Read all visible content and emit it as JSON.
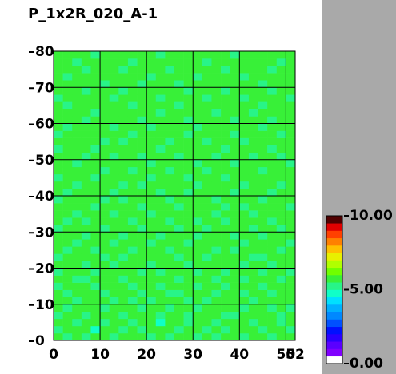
{
  "chart_data": {
    "type": "heatmap",
    "title": "P_1x2R_020_A-1",
    "xlim": [
      0,
      52
    ],
    "ylim": [
      0,
      80
    ],
    "xticks": [
      0,
      10,
      20,
      30,
      40,
      50,
      52
    ],
    "yticks": [
      0,
      10,
      20,
      30,
      40,
      50,
      60,
      70,
      80
    ],
    "zlim": [
      0,
      10
    ],
    "zticks": [
      {
        "value": 0,
        "label": "0.00"
      },
      {
        "value": 5,
        "label": "5.00"
      },
      {
        "value": 10,
        "label": "10.00"
      }
    ],
    "colors": [
      "#ffffff",
      "#8000ff",
      "#5a00ff",
      "#2a00ff",
      "#0010ff",
      "#0050ff",
      "#0088ff",
      "#00b0ff",
      "#00e0ff",
      "#10ffc8",
      "#28f488",
      "#38f038",
      "#70ff00",
      "#b0ff00",
      "#e8f000",
      "#ffc000",
      "#ff8000",
      "#ff4000",
      "#e00000",
      "#500000"
    ],
    "grid": true,
    "z": [
      [
        5.6,
        5.4,
        5.7,
        5.2,
        5.8,
        5.6,
        5.3,
        5.7,
        5.5,
        5.9,
        5.4,
        5.6,
        5.2,
        5.7,
        5.6,
        5.4,
        5.8,
        5.3,
        5.6,
        5.7,
        5.4,
        5.6,
        5.9,
        5.3,
        5.7,
        5.5
      ],
      [
        5.3,
        5.8,
        5.5,
        5.6,
        4.9,
        5.7,
        5.6,
        5.4,
        5.8,
        5.2,
        5.6,
        5.7,
        5.5,
        5.3,
        5.8,
        5.6,
        5.4,
        5.7,
        5.2,
        5.6,
        5.8,
        5.5,
        5.3,
        5.7,
        5.6,
        5.4
      ],
      [
        5.7,
        5.5,
        5.2,
        5.8,
        5.6,
        5.4,
        5.9,
        5.6,
        5.3,
        5.7,
        5.5,
        4.9,
        5.8,
        5.6,
        5.4,
        5.7,
        5.6,
        5.3,
        5.8,
        5.5,
        5.6,
        5.2,
        5.7,
        5.6,
        5.4,
        5.8
      ],
      [
        5.4,
        5.6,
        5.8,
        5.3,
        5.7,
        5.6,
        5.5,
        5.2,
        5.6,
        5.8,
        5.7,
        5.4,
        5.6,
        5.5,
        5.2,
        5.8,
        5.6,
        5.7,
        5.4,
        5.3,
        5.7,
        5.6,
        5.8,
        5.5,
        5.2,
        5.6
      ],
      [
        5.8,
        5.3,
        5.6,
        5.7,
        5.5,
        5.2,
        5.6,
        5.8,
        5.7,
        5.4,
        5.6,
        5.5,
        5.3,
        5.8,
        5.6,
        5.4,
        5.7,
        5.6,
        5.5,
        5.8,
        5.2,
        5.7,
        5.6,
        5.4,
        5.8,
        5.3
      ],
      [
        5.5,
        5.7,
        5.4,
        5.6,
        5.8,
        5.7,
        5.3,
        5.6,
        5.4,
        5.6,
        5.2,
        5.8,
        5.7,
        5.6,
        5.4,
        5.5,
        5.3,
        5.8,
        5.6,
        5.7,
        5.6,
        5.4,
        5.5,
        5.8,
        5.6,
        5.7
      ],
      [
        5.6,
        5.2,
        5.8,
        5.5,
        5.6,
        5.4,
        5.7,
        5.5,
        5.8,
        5.3,
        5.7,
        5.6,
        5.4,
        5.2,
        5.7,
        5.8,
        5.6,
        5.4,
        5.7,
        5.5,
        5.3,
        5.8,
        5.6,
        5.2,
        5.7,
        5.5
      ],
      [
        5.3,
        5.7,
        5.6,
        5.8,
        5.4,
        5.6,
        5.5,
        5.7,
        5.2,
        5.6,
        5.8,
        5.4,
        5.6,
        5.7,
        5.5,
        5.3,
        5.8,
        5.6,
        5.4,
        5.6,
        5.7,
        5.5,
        5.4,
        5.6,
        5.8,
        5.6
      ],
      [
        5.7,
        5.6,
        5.4,
        5.2,
        5.7,
        5.8,
        5.6,
        5.3,
        5.6,
        5.7,
        5.5,
        5.6,
        5.8,
        5.4,
        5.6,
        5.7,
        5.5,
        5.2,
        5.6,
        5.8,
        5.4,
        5.6,
        5.7,
        5.5,
        5.3,
        5.7
      ],
      [
        5.4,
        5.8,
        5.5,
        5.6,
        5.3,
        5.6,
        5.7,
        5.8,
        5.5,
        5.4,
        5.6,
        5.2,
        5.7,
        5.6,
        5.8,
        5.4,
        5.6,
        5.7,
        5.3,
        5.5,
        5.8,
        5.6,
        5.4,
        5.7,
        5.6,
        5.2
      ],
      [
        5.6,
        5.5,
        5.7,
        5.4,
        5.8,
        5.5,
        5.2,
        5.6,
        5.7,
        5.6,
        5.4,
        5.8,
        5.5,
        5.6,
        5.3,
        5.7,
        5.6,
        5.5,
        5.8,
        5.6,
        5.2,
        5.7,
        5.6,
        5.4,
        5.8,
        5.6
      ],
      [
        5.2,
        5.6,
        5.8,
        5.7,
        5.6,
        5.3,
        5.8,
        5.4,
        5.6,
        5.8,
        5.7,
        5.5,
        5.6,
        5.4,
        5.7,
        5.6,
        5.2,
        5.8,
        5.5,
        5.7,
        5.6,
        5.4,
        5.3,
        5.6,
        5.7,
        5.5
      ],
      [
        5.7,
        5.4,
        5.6,
        5.5,
        5.2,
        5.7,
        5.6,
        5.6,
        5.3,
        5.5,
        5.6,
        5.7,
        5.4,
        5.8,
        5.6,
        5.5,
        5.7,
        5.4,
        5.6,
        5.3,
        5.8,
        5.6,
        5.7,
        5.5,
        5.4,
        5.8
      ],
      [
        5.5,
        5.8,
        5.3,
        5.6,
        5.7,
        5.6,
        5.4,
        5.8,
        5.6,
        5.7,
        5.2,
        5.6,
        5.8,
        5.5,
        5.4,
        5.6,
        5.8,
        5.7,
        5.5,
        5.6,
        5.4,
        5.7,
        5.5,
        5.8,
        5.6,
        5.3
      ],
      [
        5.6,
        5.6,
        5.7,
        5.4,
        5.5,
        5.8,
        5.7,
        5.2,
        5.5,
        5.6,
        5.8,
        5.4,
        5.6,
        5.7,
        5.5,
        5.2,
        5.6,
        5.6,
        5.7,
        5.4,
        5.6,
        5.8,
        5.2,
        5.6,
        5.5,
        5.7
      ],
      [
        5.3,
        5.7,
        5.5,
        5.8,
        5.6,
        5.4,
        5.6,
        5.7,
        5.8,
        5.3,
        5.6,
        5.5,
        5.7,
        5.2,
        5.8,
        5.6,
        5.4,
        5.5,
        5.8,
        5.6,
        5.7,
        5.3,
        5.6,
        5.7,
        5.4,
        5.6
      ],
      [
        5.8,
        5.4,
        5.6,
        5.3,
        5.7,
        5.6,
        5.5,
        5.6,
        5.4,
        5.7,
        5.5,
        5.8,
        5.3,
        5.6,
        5.7,
        5.4,
        5.8,
        5.6,
        5.3,
        5.7,
        5.5,
        5.6,
        5.8,
        5.4,
        5.6,
        5.5
      ],
      [
        5.5,
        5.6,
        5.2,
        5.7,
        5.6,
        5.8,
        5.3,
        5.5,
        5.7,
        5.6,
        5.4,
        5.6,
        5.8,
        5.7,
        5.5,
        5.6,
        5.7,
        5.2,
        5.6,
        5.8,
        5.6,
        5.4,
        5.5,
        5.7,
        5.6,
        5.8
      ],
      [
        5.6,
        5.8,
        5.7,
        5.5,
        5.4,
        5.6,
        5.8,
        5.7,
        5.6,
        5.2,
        5.7,
        5.5,
        5.6,
        5.4,
        5.6,
        5.8,
        5.5,
        5.7,
        5.4,
        5.6,
        5.3,
        5.7,
        5.6,
        5.5,
        5.8,
        5.4
      ],
      [
        5.4,
        5.5,
        5.6,
        5.8,
        5.7,
        5.3,
        5.6,
        5.4,
        5.8,
        5.6,
        5.5,
        5.7,
        5.2,
        5.6,
        5.8,
        5.5,
        5.6,
        5.4,
        5.7,
        5.6,
        5.8,
        5.5,
        5.3,
        5.6,
        5.7,
        5.6
      ],
      [
        5.7,
        5.3,
        5.8,
        5.6,
        5.5,
        5.7,
        5.4,
        5.6,
        5.5,
        5.8,
        5.6,
        5.4,
        5.7,
        5.6,
        5.3,
        5.7,
        5.8,
        5.6,
        5.5,
        5.2,
        5.6,
        5.7,
        5.8,
        5.4,
        5.5,
        5.7
      ],
      [
        5.6,
        5.7,
        5.4,
        5.5,
        5.8,
        5.6,
        5.7,
        5.3,
        5.6,
        5.4,
        5.8,
        5.6,
        5.5,
        5.7,
        5.6,
        5.4,
        5.5,
        5.8,
        5.6,
        5.7,
        5.4,
        5.6,
        5.5,
        5.7,
        5.2,
        5.6
      ],
      [
        5.2,
        5.6,
        5.7,
        5.6,
        5.4,
        5.5,
        5.8,
        5.6,
        5.7,
        5.5,
        5.3,
        5.7,
        5.6,
        5.8,
        5.4,
        5.6,
        5.7,
        5.5,
        5.3,
        5.6,
        5.8,
        5.5,
        5.7,
        5.6,
        5.6,
        5.8
      ],
      [
        5.8,
        5.5,
        5.6,
        5.7,
        5.6,
        5.2,
        5.6,
        5.8,
        5.4,
        5.6,
        5.7,
        5.5,
        5.4,
        5.6,
        5.8,
        5.7,
        5.3,
        5.6,
        5.8,
        5.5,
        5.6,
        5.7,
        5.4,
        5.8,
        5.6,
        5.5
      ],
      [
        5.5,
        5.6,
        5.3,
        5.8,
        5.7,
        5.6,
        5.5,
        5.6,
        5.7,
        5.8,
        5.4,
        5.6,
        5.7,
        5.5,
        5.6,
        5.3,
        5.8,
        5.7,
        5.6,
        5.4,
        5.7,
        5.6,
        5.6,
        5.5,
        5.7,
        5.4
      ],
      [
        5.6,
        5.8,
        5.7,
        5.4,
        5.6,
        5.7,
        5.3,
        5.5,
        5.6,
        5.4,
        5.8,
        5.7,
        5.6,
        5.3,
        5.7,
        5.6,
        5.5,
        5.4,
        5.7,
        5.8,
        5.5,
        5.3,
        5.7,
        5.6,
        5.4,
        5.6
      ],
      [
        5.4,
        5.6,
        5.5,
        5.6,
        5.3,
        5.8,
        5.6,
        5.7,
        5.5,
        5.7,
        5.6,
        5.2,
        5.8,
        5.6,
        5.5,
        5.8,
        5.6,
        5.7,
        5.4,
        5.6,
        5.6,
        5.8,
        5.5,
        5.3,
        5.6,
        5.7
      ],
      [
        5.7,
        5.5,
        5.8,
        5.6,
        5.7,
        5.4,
        5.6,
        5.2,
        5.8,
        5.6,
        5.5,
        5.6,
        5.4,
        5.7,
        5.6,
        5.5,
        5.2,
        5.6,
        5.8,
        5.7,
        5.4,
        5.6,
        5.7,
        5.6,
        5.8,
        5.5
      ],
      [
        5.3,
        5.7,
        5.6,
        5.5,
        5.8,
        5.6,
        5.7,
        5.6,
        5.4,
        5.5,
        5.7,
        5.8,
        5.6,
        5.5,
        5.4,
        5.7,
        5.6,
        5.8,
        5.6,
        5.3,
        5.7,
        5.5,
        5.6,
        5.8,
        5.4,
        5.6
      ],
      [
        5.6,
        5.4,
        5.7,
        5.8,
        5.5,
        5.6,
        5.4,
        5.7,
        5.6,
        5.8,
        5.3,
        5.6,
        5.7,
        5.6,
        5.8,
        5.4,
        5.7,
        5.5,
        5.6,
        5.8,
        5.6,
        5.7,
        5.4,
        5.5,
        5.6,
        5.7
      ],
      [
        5.8,
        5.6,
        5.5,
        5.3,
        5.6,
        5.7,
        5.8,
        5.5,
        5.6,
        5.4,
        5.6,
        5.7,
        5.5,
        5.8,
        5.2,
        5.6,
        5.6,
        5.7,
        5.5,
        5.4,
        5.8,
        5.6,
        5.7,
        5.3,
        5.7,
        5.5
      ],
      [
        5.5,
        5.7,
        5.6,
        5.6,
        5.4,
        5.8,
        5.5,
        5.6,
        5.7,
        5.6,
        5.8,
        5.4,
        5.6,
        5.5,
        5.7,
        5.6,
        5.8,
        5.3,
        5.7,
        5.6,
        5.5,
        5.4,
        5.6,
        5.7,
        5.8,
        5.6
      ],
      [
        5.6,
        5.3,
        5.8,
        5.7,
        5.6,
        5.5,
        5.6,
        5.8,
        5.3,
        5.7,
        5.5,
        5.6,
        5.8,
        5.4,
        5.6,
        5.7,
        5.5,
        5.6,
        5.8,
        5.5,
        5.7,
        5.6,
        5.3,
        5.6,
        5.5,
        5.8
      ],
      [
        5.4,
        5.6,
        5.5,
        5.6,
        5.8,
        5.7,
        5.4,
        5.6,
        5.6,
        5.5,
        5.7,
        5.3,
        5.6,
        5.7,
        5.8,
        5.5,
        5.4,
        5.7,
        5.6,
        5.6,
        5.4,
        5.8,
        5.6,
        5.7,
        5.6,
        5.4
      ],
      [
        5.7,
        5.8,
        5.6,
        5.4,
        5.5,
        5.6,
        5.7,
        5.4,
        5.8,
        5.6,
        5.6,
        5.7,
        5.5,
        5.6,
        5.4,
        5.8,
        5.7,
        5.6,
        5.3,
        5.7,
        5.6,
        5.5,
        5.8,
        5.4,
        5.7,
        5.6
      ],
      [
        5.5,
        5.6,
        5.7,
        5.8,
        5.6,
        5.3,
        5.6,
        5.7,
        5.5,
        5.4,
        5.8,
        5.6,
        5.7,
        5.3,
        5.6,
        5.6,
        5.5,
        5.8,
        5.7,
        5.5,
        5.8,
        5.6,
        5.4,
        5.6,
        5.5,
        5.7
      ],
      [
        5.6,
        5.4,
        5.5,
        5.6,
        5.7,
        5.8,
        5.5,
        5.6,
        5.7,
        5.6,
        5.4,
        5.5,
        5.6,
        5.8,
        5.7,
        5.3,
        5.6,
        5.5,
        5.6,
        5.8,
        5.4,
        5.7,
        5.6,
        5.8,
        5.6,
        5.5
      ],
      [
        5.8,
        5.6,
        5.6,
        5.4,
        5.5,
        5.6,
        5.8,
        5.3,
        5.6,
        5.7,
        5.6,
        5.8,
        5.4,
        5.6,
        5.5,
        5.7,
        5.8,
        5.6,
        5.4,
        5.6,
        5.7,
        5.6,
        5.5,
        5.4,
        5.8,
        5.6
      ],
      [
        5.5,
        5.7,
        5.4,
        5.6,
        5.8,
        5.5,
        5.6,
        5.7,
        5.4,
        5.6,
        5.8,
        5.6,
        5.7,
        5.5,
        5.6,
        5.6,
        5.4,
        5.7,
        5.6,
        5.5,
        5.6,
        5.8,
        5.7,
        5.6,
        5.3,
        5.7
      ],
      [
        5.6,
        5.5,
        5.7,
        5.6,
        5.4,
        5.7,
        5.6,
        5.5,
        5.8,
        5.5,
        5.6,
        5.4,
        5.6,
        5.7,
        5.8,
        5.5,
        5.6,
        5.6,
        5.7,
        5.4,
        5.5,
        5.6,
        5.6,
        5.7,
        5.6,
        5.5
      ]
    ]
  }
}
